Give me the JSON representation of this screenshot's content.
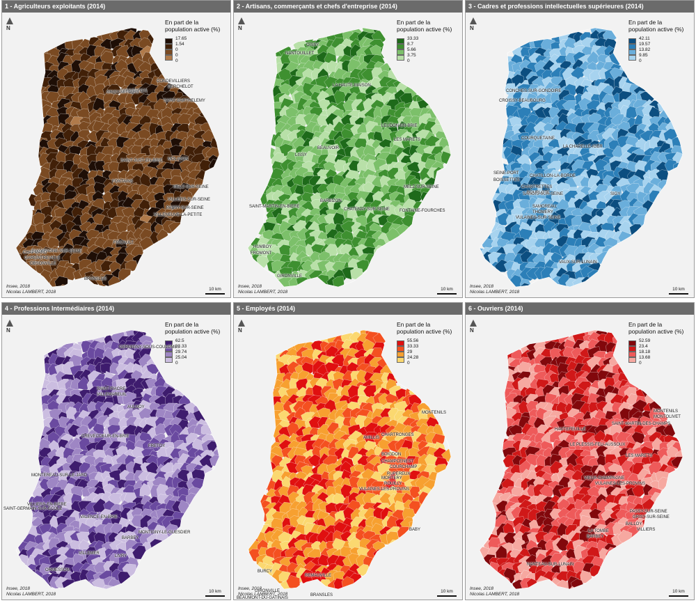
{
  "legend_title_1": "En part de la",
  "legend_title_2": "population active (%)",
  "source_1": "Insee, 2018",
  "source_2": "Nicolas LAMBERT, 2018",
  "scale_label": "10 km",
  "north_label": "N",
  "panels": [
    {
      "title": "1 - Agriculteurs exploitants (2014)",
      "colors": [
        "#1e0e06",
        "#412008",
        "#7a4a22",
        "#b07a4a",
        "#dcc0a0"
      ],
      "breaks": [
        "17.65",
        "1.54",
        "0",
        "0",
        "0"
      ],
      "pick": [
        0.2,
        0.4,
        0.99
      ],
      "labels": [
        "GOUVERNES",
        "CONDEVILLIERS",
        "BERCHELOT",
        "SAINT-BARTHELEMY",
        "GRISY-MITTERS",
        "SAINT-JUST-EN-BRIE",
        "MOLAVON",
        "FONTAINS",
        "MELZ-SUR-SEINE",
        "VILLIERS-SUR-SEINE",
        "PASSY-SUR-SEINE",
        "VILLENEUVE-LA-PETITE",
        "CHAMPAGNE-SUR-SEINE",
        "GAREINTREVILLE",
        "OBSONVILLE",
        "CHAPMARD",
        "BRANSLES",
        "FRICAULT"
      ]
    },
    {
      "title": "2 - Artisans, commerçants et chefs d'entreprise (2014)",
      "colors": [
        "#1e6a1a",
        "#3e9030",
        "#7cc06a",
        "#b8e0a8",
        "#f0faea"
      ],
      "breaks": [
        "33.33",
        "8.7",
        "5.66",
        "3.75",
        "0"
      ],
      "pick": [
        0.15,
        0.45,
        0.78
      ],
      "labels": [
        "OISSY",
        "NANTOUILLET",
        "LA HAUTE-MAISON",
        "LEUDON-EN-BRIE",
        "LES MARETS",
        "BEAUVOIR",
        "LISSY",
        "MELZ-SUR-SEINE",
        "BARBIZON",
        "SAINT-MARTIN-EN-BIERE",
        "CHATENAY-SUR-SEINE",
        "FONTAINE-FOURCHES",
        "HUMBOY",
        "FROMONT",
        "GIRONVILLE"
      ]
    },
    {
      "title": "3 - Cadres et professions intellectuelles supérieures (2014)",
      "colors": [
        "#0c4e80",
        "#2c7fb8",
        "#6aaedb",
        "#a7d3ef",
        "#e6f3fb"
      ],
      "breaks": [
        "42.11",
        "19.57",
        "13.82",
        "9.85",
        "0"
      ],
      "pick": [
        0.18,
        0.43,
        0.72
      ],
      "labels": [
        "CONCHES-SUR-GONDOIRE",
        "CROISSY-BEAUBOURG",
        "COURQUETAINE",
        "LA CHAPELLE-IGER",
        "SEINE-PORT",
        "BOISSETTES",
        "CHATILLON-LA-BORDE",
        "CHARTRETTES",
        "SAMOIS-SUR-SEINE",
        "BOURLOTE",
        "SAMOREAU",
        "THOMERY",
        "VULAINES-SUR-SEINE",
        "SIGY",
        "VAUX-SUR-LUNAIN"
      ]
    },
    {
      "title": "4 - Professions Intermédiaires (2014)",
      "colors": [
        "#3e1c6e",
        "#6a4aa0",
        "#9e86c4",
        "#cbbde0",
        "#efebf6"
      ],
      "breaks": [
        "62.5",
        "33.33",
        "29.74",
        "25.04",
        "0"
      ],
      "pick": [
        0.2,
        0.45,
        0.75
      ],
      "labels": [
        "GERMIGNY-SOUS-COULOMBS",
        "SAINT-FIACRE",
        "VILLEMAREUIL",
        "AULNOY",
        "CREVECOEUR-EN-BRIE",
        "FRETOY",
        "MONTEREAU-SUR-LE-JARD",
        "VILLIERS-EN-BIERE",
        "SAINT-GERMAIN-SUR-ECOLE",
        "VALENCE-EN-BRIE",
        "BARBEY",
        "MONTIGNY-LE-GUESDIER",
        "VILLEMER",
        "LIVRY",
        "ORMESSON"
      ]
    },
    {
      "title": "5 - Employés (2014)",
      "colors": [
        "#e01010",
        "#f45020",
        "#f7a030",
        "#fbd870",
        "#fffbe6"
      ],
      "breaks": [
        "55.56",
        "33.33",
        "29",
        "24.28",
        "0"
      ],
      "pick": [
        0.22,
        0.48,
        0.8
      ],
      "labels": [
        "MONTENILS",
        "CHARTRONGES",
        "AMILLIS",
        "BOIGDON",
        "CHAMPCENEST",
        "COURCHAMP",
        "RUPEREUX",
        "MORTERY",
        "ROUILLY",
        "VULAINES-LES-PROVINS",
        "BABY",
        "BURCY",
        "REMAUVILLE",
        "GIRONVILLE",
        "BEAUMONT-DU-GATINAIS",
        "BRANSLES"
      ]
    },
    {
      "title": "6 - Ouvriers (2014)",
      "colors": [
        "#82080c",
        "#d01818",
        "#ee5a5a",
        "#f6a8a0",
        "#fce8e4"
      ],
      "breaks": [
        "52.59",
        "23.4",
        "18.18",
        "13.68",
        "0"
      ],
      "pick": [
        0.2,
        0.45,
        0.78
      ],
      "labels": [
        "HAUTEFEUILLE",
        "MONTENILS",
        "MONTOLIVET",
        "SAINT-MARTIN-DES-CHAMPS",
        "LE PLESSIS-FEU-AUSSOUX",
        "LES MARETS",
        "VIEUX-CHAMPAGNE",
        "VULAINES-LES-PROVINS",
        "PASSY-SUR-SEINE",
        "GRISY-SUR-SEINE",
        "BALLOY",
        "VILLIERS",
        "LA TOMBE",
        "BARBEY",
        "NANTEAU-SUR-LUNAIN"
      ]
    }
  ]
}
